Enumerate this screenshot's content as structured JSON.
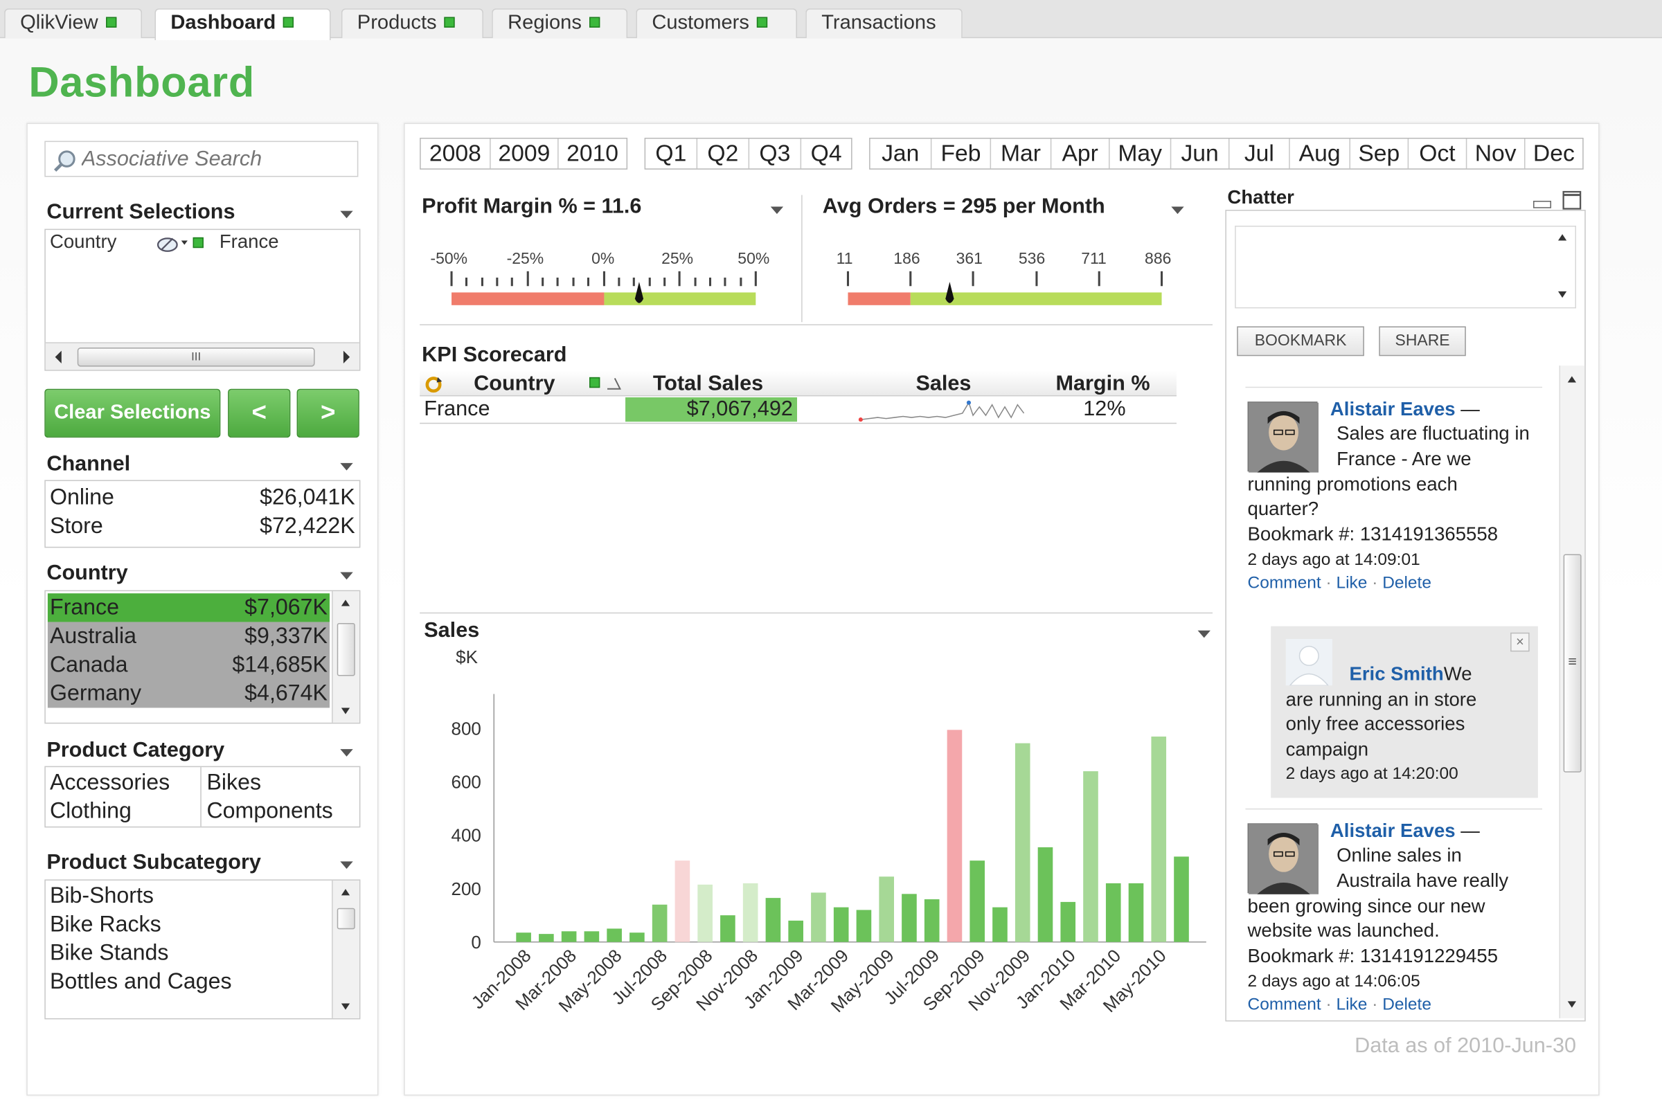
{
  "tabs": [
    {
      "label": "QlikView",
      "indicator": true
    },
    {
      "label": "Dashboard",
      "indicator": true,
      "active": true
    },
    {
      "label": "Products",
      "indicator": true
    },
    {
      "label": "Regions",
      "indicator": true
    },
    {
      "label": "Customers",
      "indicator": true
    },
    {
      "label": "Transactions",
      "indicator": false
    }
  ],
  "page_title": "Dashboard",
  "search": {
    "placeholder": "Associative Search"
  },
  "current_selections": {
    "title": "Current Selections",
    "field": "Country",
    "value": "France",
    "scroll_grip": "III"
  },
  "buttons": {
    "clear": "Clear Selections",
    "back": "<",
    "forward": ">"
  },
  "channel": {
    "title": "Channel",
    "rows": [
      {
        "label": "Online",
        "value": "$26,041K"
      },
      {
        "label": "Store",
        "value": "$72,422K"
      }
    ]
  },
  "country": {
    "title": "Country",
    "rows": [
      {
        "label": "France",
        "value": "$7,067K",
        "state": "selected"
      },
      {
        "label": "Australia",
        "value": "$9,337K",
        "state": "excluded"
      },
      {
        "label": "Canada",
        "value": "$14,685K",
        "state": "excluded"
      },
      {
        "label": "Germany",
        "value": "$4,674K",
        "state": "excluded"
      }
    ]
  },
  "product_category": {
    "title": "Product Category",
    "items": [
      "Accessories",
      "Bikes",
      "Clothing",
      "Components"
    ]
  },
  "product_subcategory": {
    "title": "Product Subcategory",
    "items": [
      "Bib-Shorts",
      "Bike Racks",
      "Bike Stands",
      "Bottles and Cages"
    ]
  },
  "filters": {
    "years": [
      "2008",
      "2009",
      "2010"
    ],
    "quarters": [
      "Q1",
      "Q2",
      "Q3",
      "Q4"
    ],
    "months": [
      "Jan",
      "Feb",
      "Mar",
      "Apr",
      "May",
      "Jun",
      "Jul",
      "Aug",
      "Sep",
      "Oct",
      "Nov",
      "Dec"
    ]
  },
  "gauge_profit": {
    "title": "Profit Margin % = 11.6",
    "ticks": [
      "-50%",
      "-25%",
      "0%",
      "25%",
      "50%"
    ],
    "value": 11.6,
    "min": -50,
    "max": 50,
    "red_to": 0,
    "colors": {
      "red": "#f07c6b",
      "green": "#b8dc5a"
    }
  },
  "gauge_orders": {
    "title": "Avg Orders = 295 per Month",
    "ticks": [
      "11",
      "186",
      "361",
      "536",
      "711",
      "886"
    ],
    "value": 295,
    "min": 11,
    "max": 886,
    "red_to": 186,
    "colors": {
      "red": "#f07c6b",
      "green": "#b8dc5a"
    }
  },
  "kpi": {
    "title": "KPI Scorecard",
    "headers": {
      "country": "Country",
      "total_sales": "Total Sales",
      "sales": "Sales",
      "margin": "Margin %"
    },
    "rows": [
      {
        "country": "France",
        "total_sales": "$7,067,492",
        "margin": "12%"
      }
    ]
  },
  "chart_data": {
    "type": "bar",
    "title": "Sales",
    "ylabel": "$K",
    "xlabel": "",
    "ylim": [
      0,
      850
    ],
    "yticks": [
      0,
      200,
      400,
      600,
      800
    ],
    "categories": [
      "Jan-2008",
      "Feb-2008",
      "Mar-2008",
      "Apr-2008",
      "May-2008",
      "Jun-2008",
      "Jul-2008",
      "Aug-2008",
      "Sep-2008",
      "Oct-2008",
      "Nov-2008",
      "Dec-2008",
      "Jan-2009",
      "Feb-2009",
      "Mar-2009",
      "Apr-2009",
      "May-2009",
      "Jun-2009",
      "Jul-2009",
      "Aug-2009",
      "Sep-2009",
      "Oct-2009",
      "Nov-2009",
      "Dec-2009",
      "Jan-2010",
      "Feb-2010",
      "Mar-2010",
      "Apr-2010",
      "May-2010",
      "Jun-2010"
    ],
    "values": [
      35,
      30,
      40,
      40,
      50,
      35,
      140,
      305,
      215,
      100,
      220,
      165,
      80,
      185,
      130,
      120,
      245,
      180,
      160,
      795,
      305,
      130,
      745,
      355,
      150,
      640,
      220,
      220,
      770,
      320
    ],
    "colors": [
      "#6cc25a",
      "#6cc25a",
      "#6cc25a",
      "#6cc25a",
      "#6cc25a",
      "#6cc25a",
      "#80c96d",
      "#f8d6d6",
      "#d4ecc9",
      "#6cc25a",
      "#d4ecc9",
      "#6cc25a",
      "#6cc25a",
      "#a6d896",
      "#6cc25a",
      "#6cc25a",
      "#a6d896",
      "#6cc25a",
      "#6cc25a",
      "#f4a7ab",
      "#6cc25a",
      "#6cc25a",
      "#a6d896",
      "#6cc25a",
      "#6cc25a",
      "#a6d896",
      "#6cc25a",
      "#6cc25a",
      "#a6d896",
      "#6cc25a"
    ],
    "xlabels_shown": [
      "Jan-2008",
      "Mar-2008",
      "May-2008",
      "Jul-2008",
      "Sep-2008",
      "Nov-2008",
      "Jan-2009",
      "Mar-2009",
      "May-2009",
      "Jul-2009",
      "Sep-2009",
      "Nov-2009",
      "Jan-2010",
      "Mar-2010",
      "May-2010"
    ],
    "grid": false
  },
  "chatter": {
    "title": "Chatter",
    "bookmark_label": "BOOKMARK",
    "share_label": "SHARE",
    "posts": [
      {
        "author": "Alistair Eaves",
        "dash": " —",
        "text_lines": [
          "Sales are fluctuating in",
          "France - Are we",
          "running promotions each",
          "quarter?"
        ],
        "bookmark": "Bookmark #: 1314191365558",
        "time": "2 days ago at 14:09:01"
      },
      {
        "author": "Eric Smith",
        "text_first": "We",
        "text_lines": [
          "are running an in store",
          "only free accessories",
          "campaign"
        ],
        "time": "2 days ago at 14:20:00"
      },
      {
        "author": "Alistair Eaves",
        "dash": " —",
        "text_lines": [
          "Online sales in",
          "Austraila have really",
          "been growing since our new",
          "website was launched."
        ],
        "bookmark": "Bookmark #: 1314191229455",
        "time": "2 days ago at 14:06:05"
      }
    ],
    "actions": {
      "comment": "Comment",
      "like": "Like",
      "delete": "Delete",
      "sep": "·"
    },
    "close_glyph": "×",
    "scroll_grip": "≡"
  },
  "data_as_of": "Data as of 2010-Jun-30"
}
